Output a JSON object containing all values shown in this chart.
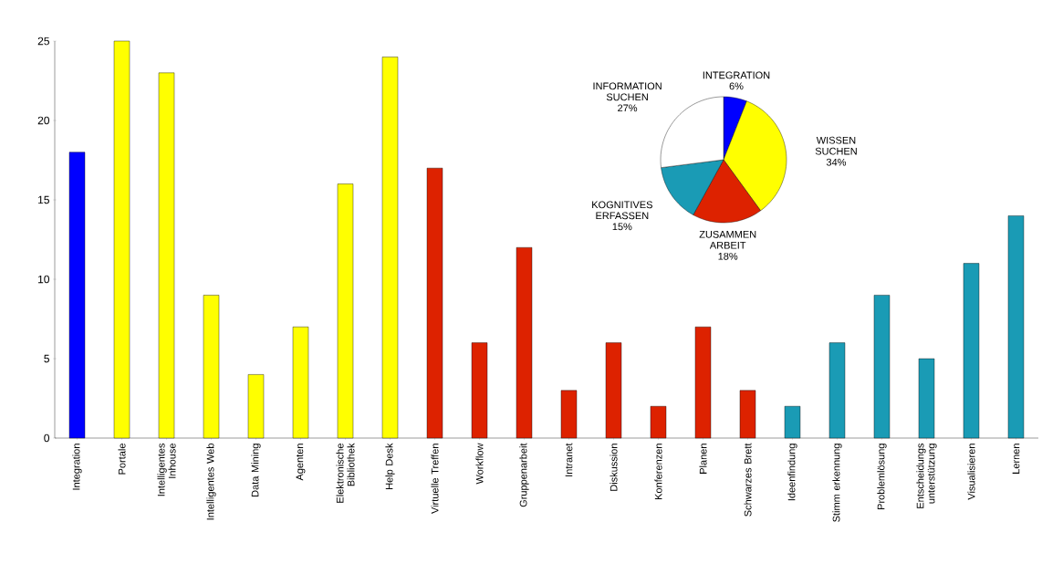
{
  "chart_data": [
    {
      "type": "bar",
      "categories": [
        "Integration",
        "Portale",
        "Intelligentes Inhouse",
        "Intelligentes Web",
        "Data Mining",
        "Agenten",
        "Elektronische Bibliothek",
        "Help Desk",
        "Virtuelle Treffen",
        "Workflow",
        "Gruppenarbeit",
        "Intranet",
        "Diskussion",
        "Konferenzen",
        "Planen",
        "Schwarzes Brett",
        "Ideenfindung",
        "Stimm erkennung",
        "Problemlösung",
        "Entscheidungs unterstützung",
        "Visualisieren",
        "Lernen"
      ],
      "values": [
        18,
        25,
        23,
        9,
        4,
        7,
        16,
        24,
        17,
        6,
        12,
        3,
        6,
        2,
        7,
        3,
        2,
        6,
        9,
        5,
        11,
        14
      ],
      "colors": [
        "#0000ff",
        "#ffff00",
        "#ffff00",
        "#ffff00",
        "#ffff00",
        "#ffff00",
        "#ffff00",
        "#ffff00",
        "#dd2200",
        "#dd2200",
        "#dd2200",
        "#dd2200",
        "#dd2200",
        "#dd2200",
        "#dd2200",
        "#dd2200",
        "#1a9bb5",
        "#1a9bb5",
        "#1a9bb5",
        "#1a9bb5",
        "#1a9bb5",
        "#1a9bb5"
      ],
      "ylim": [
        0,
        25
      ],
      "yticks": [
        0,
        5,
        10,
        15,
        20,
        25
      ],
      "grid": false
    },
    {
      "type": "pie",
      "categories": [
        "INTEGRATION",
        "WISSEN SUCHEN",
        "ZUSAMMEN ARBEIT",
        "KOGNITIVES ERFASSEN",
        "INFORMATION SUCHEN"
      ],
      "values": [
        6,
        34,
        18,
        15,
        27
      ],
      "value_labels": [
        "6%",
        "34%",
        "18%",
        "15%",
        "27%"
      ],
      "colors": [
        "#0000ff",
        "#ffff00",
        "#dd2200",
        "#1a9bb5",
        "#ffffff"
      ]
    }
  ]
}
